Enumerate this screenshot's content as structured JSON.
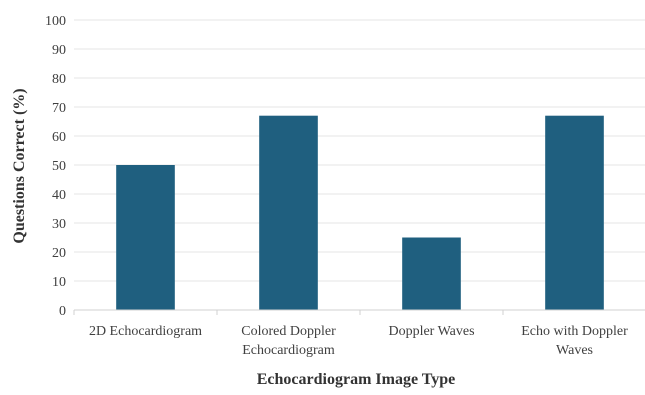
{
  "chart_data": {
    "type": "bar",
    "title": "",
    "xlabel": "Echocardiogram Image Type",
    "ylabel": "Questions Correct (%)",
    "ylim": [
      0,
      100
    ],
    "yticks": [
      0,
      10,
      20,
      30,
      40,
      50,
      60,
      70,
      80,
      90,
      100
    ],
    "grid": true,
    "categories": [
      [
        "2D Echocardiogram"
      ],
      [
        "Colored Doppler",
        "Echocardiogram"
      ],
      [
        "Doppler Waves"
      ],
      [
        "Echo with Doppler",
        "Waves"
      ]
    ],
    "values": [
      50,
      67,
      25,
      67
    ],
    "bar_color": "#1f5f7f",
    "grid_color": "#e6e6e6",
    "axis_color": "#d0d0d0"
  }
}
